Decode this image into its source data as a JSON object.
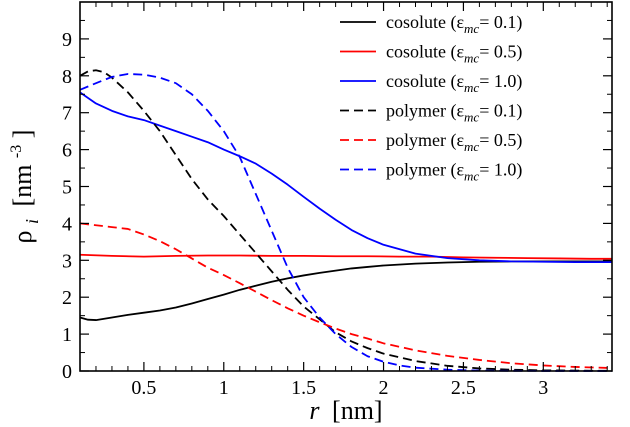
{
  "chart_data": {
    "type": "line",
    "xlabel": {
      "var": "r",
      "unit": "[nm]"
    },
    "ylabel": {
      "var": "ρ",
      "sub": "i",
      "unit": "[nm",
      "sup": "-3",
      "close": "]"
    },
    "xlim": [
      0.1,
      3.43
    ],
    "ylim": [
      0,
      10
    ],
    "xticks": [
      0.5,
      1,
      1.5,
      2,
      2.5,
      3
    ],
    "xtick_labels": [
      "0.5",
      "1",
      "1.5",
      "2",
      "2.5",
      "3"
    ],
    "yticks": [
      0,
      1,
      2,
      3,
      4,
      5,
      6,
      7,
      8,
      9
    ],
    "yticks_minor_step": 0.5,
    "xticks_minor_step": 0.1,
    "legend_position": "top-right",
    "series": [
      {
        "name": "cosolute (ε_mc = 0.1)",
        "label_prefix": "cosolute (ε",
        "label_sub": "mc",
        "label_suffix": "= 0.1)",
        "color": "#000000",
        "dash": "solid",
        "x": [
          0.1,
          0.15,
          0.2,
          0.3,
          0.4,
          0.5,
          0.6,
          0.7,
          0.8,
          0.9,
          1.0,
          1.1,
          1.2,
          1.3,
          1.4,
          1.5,
          1.6,
          1.7,
          1.8,
          1.9,
          2.0,
          2.2,
          2.4,
          2.6,
          2.8,
          3.0,
          3.2,
          3.43
        ],
        "y": [
          1.45,
          1.39,
          1.38,
          1.45,
          1.52,
          1.58,
          1.64,
          1.72,
          1.83,
          1.95,
          2.07,
          2.2,
          2.31,
          2.42,
          2.51,
          2.59,
          2.66,
          2.72,
          2.78,
          2.82,
          2.86,
          2.91,
          2.94,
          2.96,
          2.97,
          2.97,
          2.97,
          2.97
        ]
      },
      {
        "name": "cosolute (ε_mc = 0.5)",
        "label_prefix": "cosolute (ε",
        "label_sub": "mc",
        "label_suffix": "= 0.5)",
        "color": "#ff0000",
        "dash": "solid",
        "x": [
          0.1,
          0.3,
          0.5,
          0.7,
          0.9,
          1.1,
          1.3,
          1.5,
          1.7,
          1.9,
          2.1,
          2.3,
          2.5,
          2.7,
          2.9,
          3.1,
          3.3,
          3.43
        ],
        "y": [
          3.15,
          3.12,
          3.1,
          3.12,
          3.13,
          3.13,
          3.12,
          3.12,
          3.11,
          3.11,
          3.1,
          3.1,
          3.08,
          3.07,
          3.06,
          3.05,
          3.04,
          3.04
        ]
      },
      {
        "name": "cosolute (ε_mc = 1.0)",
        "label_prefix": "cosolute (ε",
        "label_sub": "mc",
        "label_suffix": "= 1.0)",
        "color": "#0000ff",
        "dash": "solid",
        "x": [
          0.1,
          0.2,
          0.3,
          0.4,
          0.5,
          0.6,
          0.7,
          0.8,
          0.9,
          1.0,
          1.1,
          1.2,
          1.3,
          1.4,
          1.5,
          1.6,
          1.7,
          1.8,
          1.9,
          2.0,
          2.2,
          2.4,
          2.6,
          2.8,
          3.0,
          3.2,
          3.43
        ],
        "y": [
          7.55,
          7.25,
          7.05,
          6.9,
          6.8,
          6.65,
          6.5,
          6.35,
          6.2,
          6.0,
          5.82,
          5.62,
          5.35,
          5.05,
          4.72,
          4.4,
          4.1,
          3.82,
          3.6,
          3.42,
          3.18,
          3.06,
          3.0,
          2.97,
          2.96,
          2.95,
          2.95
        ]
      },
      {
        "name": "polymer (ε_mc = 0.1)",
        "label_prefix": "polymer (ε",
        "label_sub": "mc",
        "label_suffix": "= 0.1)",
        "color": "#000000",
        "dash": "dashed",
        "x": [
          0.1,
          0.15,
          0.2,
          0.25,
          0.3,
          0.4,
          0.5,
          0.6,
          0.7,
          0.8,
          0.9,
          1.0,
          1.1,
          1.2,
          1.3,
          1.4,
          1.5,
          1.6,
          1.7,
          1.8,
          1.9,
          2.0,
          2.2,
          2.4,
          2.6,
          2.8,
          3.0,
          3.2,
          3.43
        ],
        "y": [
          8.0,
          8.12,
          8.15,
          8.1,
          7.95,
          7.55,
          7.05,
          6.5,
          5.85,
          5.2,
          4.65,
          4.2,
          3.7,
          3.2,
          2.7,
          2.2,
          1.75,
          1.4,
          1.05,
          0.8,
          0.62,
          0.47,
          0.27,
          0.14,
          0.07,
          0.035,
          0.018,
          0.01,
          0.005
        ]
      },
      {
        "name": "polymer (ε_mc = 0.5)",
        "label_prefix": "polymer (ε",
        "label_sub": "mc",
        "label_suffix": "= 0.5)",
        "color": "#ff0000",
        "dash": "dashed",
        "x": [
          0.1,
          0.2,
          0.3,
          0.4,
          0.5,
          0.6,
          0.7,
          0.8,
          0.9,
          1.0,
          1.1,
          1.2,
          1.3,
          1.4,
          1.5,
          1.6,
          1.7,
          1.8,
          1.9,
          2.0,
          2.2,
          2.4,
          2.6,
          2.8,
          3.0,
          3.2,
          3.43
        ],
        "y": [
          4.0,
          3.95,
          3.9,
          3.85,
          3.7,
          3.52,
          3.3,
          3.05,
          2.8,
          2.6,
          2.38,
          2.15,
          1.92,
          1.7,
          1.5,
          1.32,
          1.15,
          1.0,
          0.88,
          0.75,
          0.56,
          0.41,
          0.3,
          0.21,
          0.15,
          0.11,
          0.08
        ]
      },
      {
        "name": "polymer (ε_mc = 1.0)",
        "label_prefix": "polymer (ε",
        "label_sub": "mc",
        "label_suffix": "= 1.0)",
        "color": "#0000ff",
        "dash": "dashed",
        "x": [
          0.1,
          0.2,
          0.3,
          0.4,
          0.5,
          0.6,
          0.7,
          0.8,
          0.9,
          1.0,
          1.1,
          1.2,
          1.3,
          1.4,
          1.5,
          1.6,
          1.7,
          1.8,
          1.9,
          2.0,
          2.1,
          2.2,
          2.4,
          2.6,
          2.8,
          3.0,
          3.2,
          3.43
        ],
        "y": [
          7.62,
          7.8,
          7.97,
          8.05,
          8.03,
          7.95,
          7.8,
          7.5,
          7.05,
          6.5,
          5.8,
          4.8,
          3.8,
          2.8,
          2.0,
          1.45,
          1.0,
          0.65,
          0.4,
          0.25,
          0.15,
          0.09,
          0.035,
          0.012,
          0.005,
          0.002,
          0.001,
          0.0
        ]
      }
    ]
  }
}
